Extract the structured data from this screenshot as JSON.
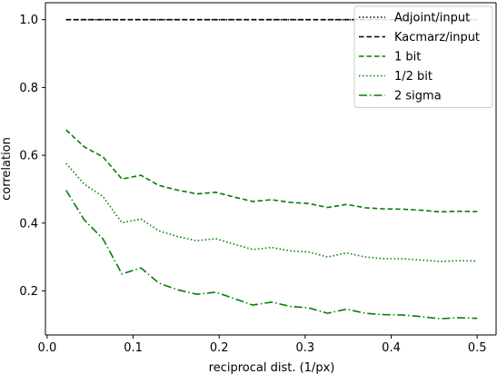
{
  "chart_data": {
    "type": "line",
    "title": "",
    "xlabel": "reciprocal dist. (1/px)",
    "ylabel": "correlation",
    "xlim": [
      -0.002,
      0.522
    ],
    "ylim": [
      0.07,
      1.05
    ],
    "xticks": [
      0.0,
      0.1,
      0.2,
      0.3,
      0.4,
      0.5
    ],
    "xtick_labels": [
      "0.0",
      "0.1",
      "0.2",
      "0.3",
      "0.4",
      "0.5"
    ],
    "yticks": [
      0.2,
      0.4,
      0.6,
      0.8,
      1.0
    ],
    "ytick_labels": [
      "0.2",
      "0.4",
      "0.6",
      "0.8",
      "1.0"
    ],
    "grid": false,
    "legend_position": "top-right",
    "x": [
      0.022,
      0.043,
      0.065,
      0.087,
      0.109,
      0.13,
      0.152,
      0.174,
      0.196,
      0.217,
      0.239,
      0.261,
      0.283,
      0.304,
      0.326,
      0.348,
      0.37,
      0.391,
      0.413,
      0.435,
      0.457,
      0.478,
      0.5
    ],
    "series": [
      {
        "name": "Adjoint/input",
        "color": "#000000",
        "style": "dotted",
        "values": [
          1.0,
          1.0,
          1.0,
          1.0,
          1.0,
          1.0,
          1.0,
          1.0,
          1.0,
          1.0,
          1.0,
          1.0,
          1.0,
          1.0,
          1.0,
          1.0,
          1.0,
          1.0,
          1.0,
          1.0,
          1.0,
          1.0,
          1.0
        ]
      },
      {
        "name": "Kacmarz/input",
        "color": "#000000",
        "style": "dashed",
        "values": [
          1.0,
          1.0,
          1.0,
          1.0,
          1.0,
          1.0,
          1.0,
          1.0,
          1.0,
          1.0,
          1.0,
          1.0,
          1.0,
          1.0,
          1.0,
          1.0,
          1.0,
          1.0,
          1.0,
          1.0,
          1.0,
          1.0,
          1.0
        ]
      },
      {
        "name": "1 bit",
        "color": "#008000",
        "style": "dashed",
        "values": [
          0.675,
          0.625,
          0.595,
          0.53,
          0.541,
          0.511,
          0.497,
          0.486,
          0.491,
          0.477,
          0.464,
          0.469,
          0.461,
          0.458,
          0.446,
          0.455,
          0.445,
          0.442,
          0.441,
          0.438,
          0.433,
          0.435,
          0.434
        ]
      },
      {
        "name": "1/2 bit",
        "color": "#008000",
        "style": "dotted",
        "values": [
          0.576,
          0.515,
          0.478,
          0.401,
          0.412,
          0.377,
          0.36,
          0.348,
          0.354,
          0.338,
          0.322,
          0.328,
          0.318,
          0.315,
          0.3,
          0.312,
          0.3,
          0.295,
          0.295,
          0.291,
          0.287,
          0.289,
          0.288
        ]
      },
      {
        "name": "2 sigma",
        "color": "#008000",
        "style": "dashdot",
        "values": [
          0.497,
          0.41,
          0.353,
          0.25,
          0.268,
          0.223,
          0.203,
          0.19,
          0.196,
          0.178,
          0.158,
          0.167,
          0.154,
          0.15,
          0.134,
          0.146,
          0.134,
          0.13,
          0.129,
          0.124,
          0.118,
          0.121,
          0.119
        ]
      }
    ]
  }
}
